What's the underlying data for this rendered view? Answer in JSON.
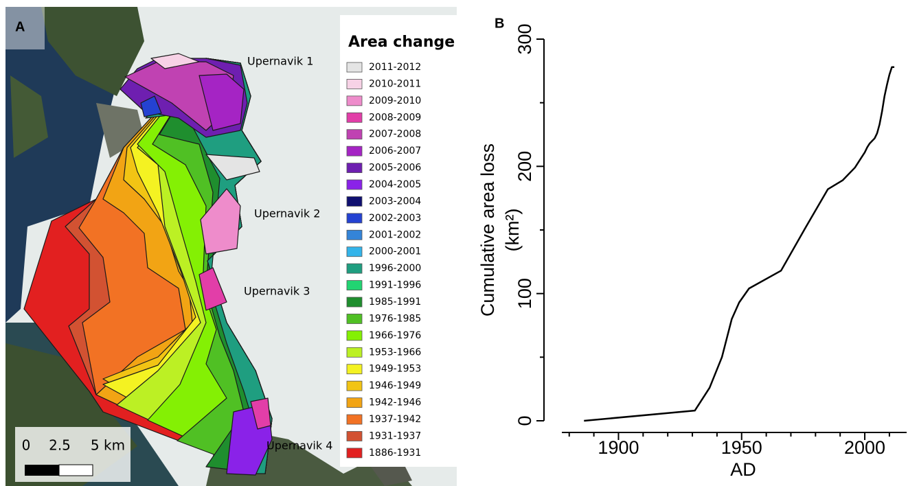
{
  "map": {
    "panel_label": "A",
    "legend_title": "Area change",
    "legend": [
      {
        "label": "2011-2012",
        "color": "#e4e4e4"
      },
      {
        "label": "2010-2011",
        "color": "#f7d2e6"
      },
      {
        "label": "2009-2010",
        "color": "#ee8ccb"
      },
      {
        "label": "2008-2009",
        "color": "#e23ea8"
      },
      {
        "label": "2007-2008",
        "color": "#c042b2"
      },
      {
        "label": "2006-2007",
        "color": "#a524c4"
      },
      {
        "label": "2005-2006",
        "color": "#6e1fb0"
      },
      {
        "label": "2004-2005",
        "color": "#8a22e8"
      },
      {
        "label": "2003-2004",
        "color": "#101070"
      },
      {
        "label": "2002-2003",
        "color": "#2442d2"
      },
      {
        "label": "2001-2002",
        "color": "#3484d8"
      },
      {
        "label": "2000-2001",
        "color": "#34b4ea"
      },
      {
        "label": "1996-2000",
        "color": "#1f9e80"
      },
      {
        "label": "1991-1996",
        "color": "#22d472"
      },
      {
        "label": "1985-1991",
        "color": "#1f8e2e"
      },
      {
        "label": "1976-1985",
        "color": "#50c024"
      },
      {
        "label": "1966-1976",
        "color": "#84f004"
      },
      {
        "label": "1953-1966",
        "color": "#bcf024"
      },
      {
        "label": "1949-1953",
        "color": "#f4f222"
      },
      {
        "label": "1946-1949",
        "color": "#f2c414"
      },
      {
        "label": "1942-1946",
        "color": "#f2a414"
      },
      {
        "label": "1937-1942",
        "color": "#f27224"
      },
      {
        "label": "1931-1937",
        "color": "#d25232"
      },
      {
        "label": "1886-1931",
        "color": "#e22020"
      }
    ],
    "place_labels": [
      "Upernavik 1",
      "Upernavik 2",
      "Upernavik 3",
      "Upernavik 4"
    ],
    "scale_labels": [
      "0",
      "2.5",
      "5 km"
    ]
  },
  "chart_data": {
    "type": "line",
    "panel_label": "B",
    "x_label": "AD",
    "y_label": [
      "Cumulative area loss",
      "(km²)"
    ],
    "x": [
      1886,
      1931,
      1937,
      1942,
      1946,
      1949,
      1953,
      1966,
      1976,
      1985,
      1991,
      1996,
      2000,
      2001,
      2002,
      2003,
      2004,
      2005,
      2006,
      2007,
      2008,
      2009,
      2010,
      2011,
      2012
    ],
    "values": [
      0,
      8,
      26,
      50,
      80,
      93,
      104,
      118,
      152,
      182,
      189,
      199,
      211,
      215,
      218,
      220,
      222,
      226,
      233,
      243,
      255,
      264,
      272,
      278,
      278
    ],
    "color": "#000000",
    "xlim": [
      1877,
      2017
    ],
    "xticks": [
      1900,
      1950,
      2000
    ],
    "minor_xticks": [
      1880,
      1890,
      1910,
      1920,
      1930,
      1940,
      1960,
      1970,
      1980,
      1990,
      2010
    ],
    "ylim": [
      0,
      300
    ],
    "yticks": [
      0,
      100,
      200,
      300
    ],
    "minor_yticks": [
      50,
      150,
      250
    ]
  }
}
